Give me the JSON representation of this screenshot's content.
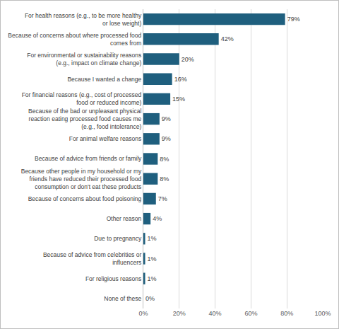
{
  "chart_data": {
    "type": "bar",
    "orientation": "horizontal",
    "categories": [
      "For health reasons (e.g., to be more healthy or lose weight)",
      "Because of concerns about where processed food comes from",
      "For environmental or sustainability reasons (e.g., impact on climate change)",
      "Because I wanted a change",
      "For financial reasons (e.g., cost of processed food or reduced income)",
      "Because of the bad or unpleasant physical reaction eating processed food causes me (e.g., food intolerance)",
      "For animal welfare reasons",
      "Because of advice from friends or family",
      "Because other people in my household or my friends have reduced their processed food consumption or don't eat these products",
      "Because of concerns about food poisoning",
      "Other reason",
      "Due to pregnancy",
      "Because of advice from celebrities or influencers",
      "For religious reasons",
      "None of these"
    ],
    "values": [
      79,
      42,
      20,
      16,
      15,
      9,
      9,
      8,
      8,
      7,
      4,
      1,
      1,
      1,
      0
    ],
    "value_labels": [
      "79%",
      "42%",
      "20%",
      "16%",
      "15%",
      "9%",
      "9%",
      "8%",
      "8%",
      "7%",
      "4%",
      "1%",
      "1%",
      "1%",
      "0%"
    ],
    "color": "#1f5f7e",
    "data_labels": true,
    "xlim": [
      0,
      100
    ],
    "xticks": [
      {
        "value": 0,
        "label": "0%"
      },
      {
        "value": 20,
        "label": "20%"
      },
      {
        "value": 40,
        "label": "40%"
      },
      {
        "value": 60,
        "label": "60%"
      },
      {
        "value": 80,
        "label": "80%"
      },
      {
        "value": 100,
        "label": "100%"
      }
    ],
    "grid": true
  }
}
